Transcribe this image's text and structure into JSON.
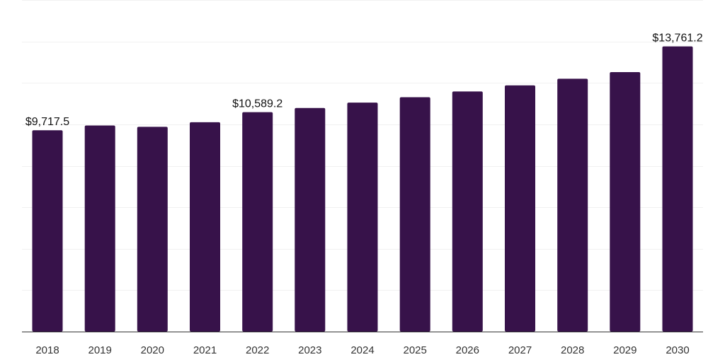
{
  "chart_data": {
    "type": "bar",
    "categories": [
      "2018",
      "2019",
      "2020",
      "2021",
      "2022",
      "2023",
      "2024",
      "2025",
      "2026",
      "2027",
      "2028",
      "2029",
      "2030"
    ],
    "values": [
      9717.5,
      9945,
      9880,
      10100,
      10589.2,
      10790,
      11050,
      11310,
      11585,
      11880,
      12200,
      12520,
      13761.2
    ],
    "data_labels": [
      {
        "index": 0,
        "text": "$9,717.5"
      },
      {
        "index": 4,
        "text": "$10,589.2"
      },
      {
        "index": 12,
        "text": "$13,761.2"
      }
    ],
    "ylim": [
      0,
      16000
    ],
    "grid": true,
    "colors": {
      "bar": "#37124a",
      "grid": "#f1f1f1",
      "axis": "#333333"
    }
  }
}
